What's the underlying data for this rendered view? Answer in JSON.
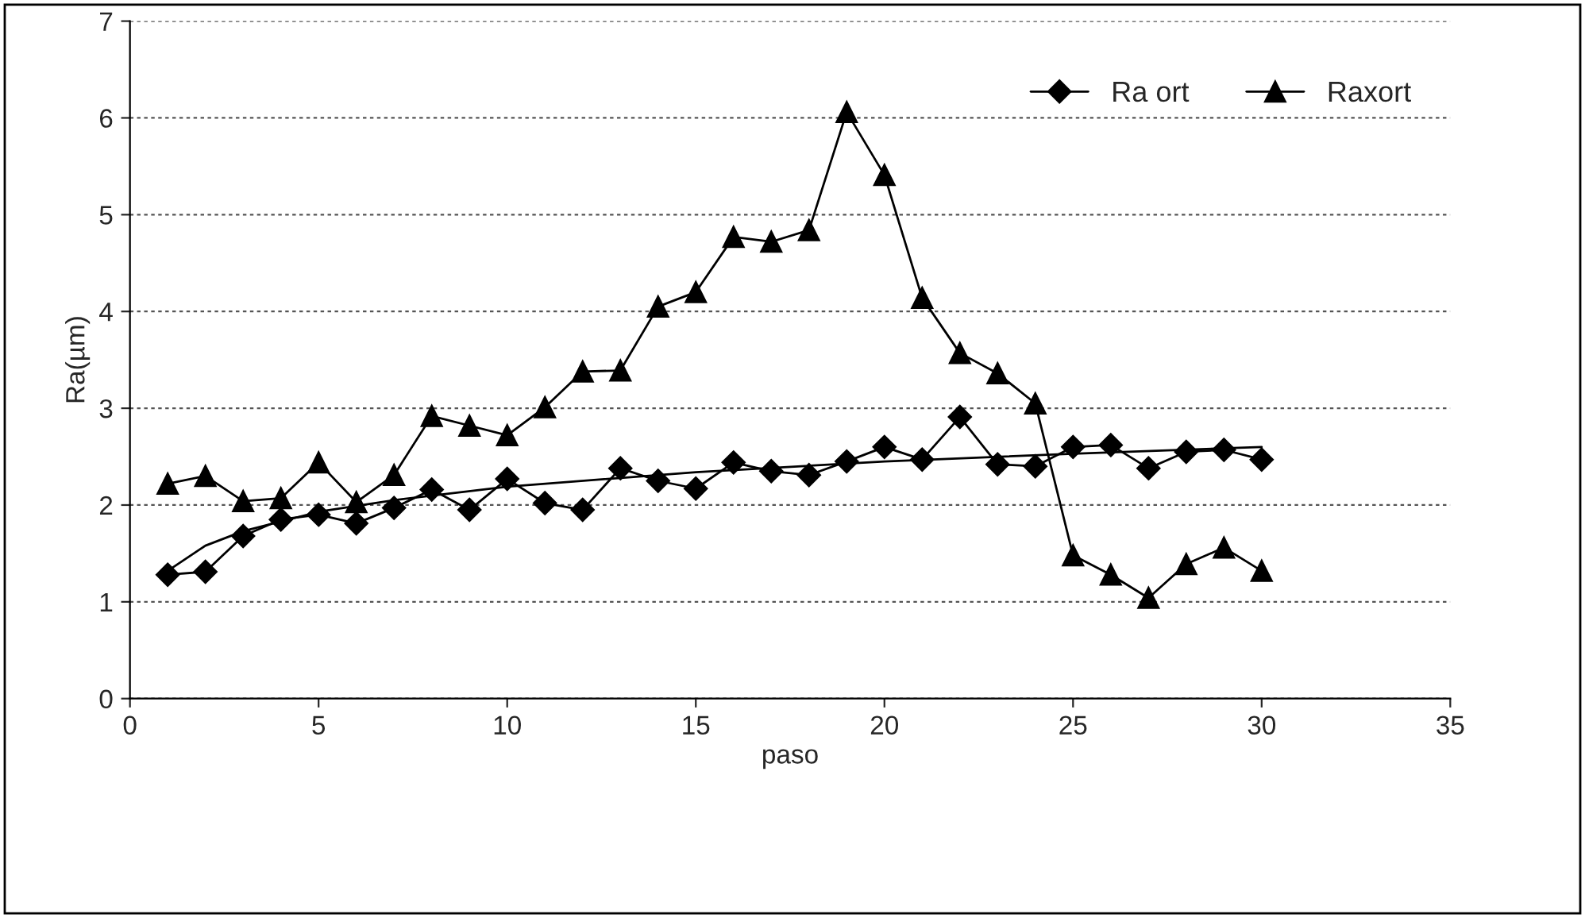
{
  "chart_data": {
    "type": "line",
    "xlabel": "paso",
    "ylabel": "Ra(µm)",
    "xlim": [
      0,
      35
    ],
    "xticks": [
      0,
      5,
      10,
      15,
      20,
      25,
      30,
      35
    ],
    "ylim": [
      0,
      7
    ],
    "yticks": [
      0,
      1,
      2,
      3,
      4,
      5,
      6,
      7
    ],
    "grid": "y",
    "legend": "top right",
    "line_style": "solid",
    "series": [
      {
        "name": "Ra ort",
        "color": "#000000",
        "marker": "diamond",
        "x": [
          1,
          2,
          3,
          4,
          5,
          6,
          7,
          8,
          9,
          10,
          11,
          12,
          13,
          14,
          15,
          16,
          17,
          18,
          19,
          20,
          21,
          22,
          23,
          24,
          25,
          26,
          27,
          28,
          29,
          30
        ],
        "values": [
          1.28,
          1.31,
          1.68,
          1.85,
          1.9,
          1.81,
          1.97,
          2.16,
          1.95,
          2.27,
          2.02,
          1.95,
          2.38,
          2.25,
          2.17,
          2.44,
          2.35,
          2.31,
          2.45,
          2.6,
          2.47,
          2.91,
          2.42,
          2.4,
          2.6,
          2.62,
          2.38,
          2.55,
          2.57,
          2.47
        ]
      },
      {
        "name": "Raxort",
        "color": "#000000",
        "marker": "triangle",
        "x": [
          1,
          2,
          3,
          4,
          5,
          6,
          7,
          8,
          9,
          10,
          11,
          12,
          13,
          14,
          15,
          16,
          17,
          18,
          19,
          20,
          21,
          22,
          23,
          24,
          25,
          26,
          27,
          28,
          29,
          30
        ],
        "values": [
          2.22,
          2.3,
          2.04,
          2.07,
          2.44,
          2.03,
          2.31,
          2.92,
          2.82,
          2.72,
          3.01,
          3.38,
          3.39,
          4.05,
          4.2,
          4.77,
          4.72,
          4.84,
          6.06,
          5.41,
          4.14,
          3.57,
          3.36,
          3.05,
          1.48,
          1.28,
          1.04,
          1.39,
          1.56,
          1.32
        ]
      },
      {
        "color": "#000000",
        "marker": "none",
        "x": [
          1,
          2,
          3,
          5,
          7,
          10,
          15,
          20,
          25,
          30
        ],
        "values": [
          1.32,
          1.58,
          1.73,
          1.93,
          2.05,
          2.19,
          2.34,
          2.45,
          2.53,
          2.6
        ]
      }
    ]
  }
}
